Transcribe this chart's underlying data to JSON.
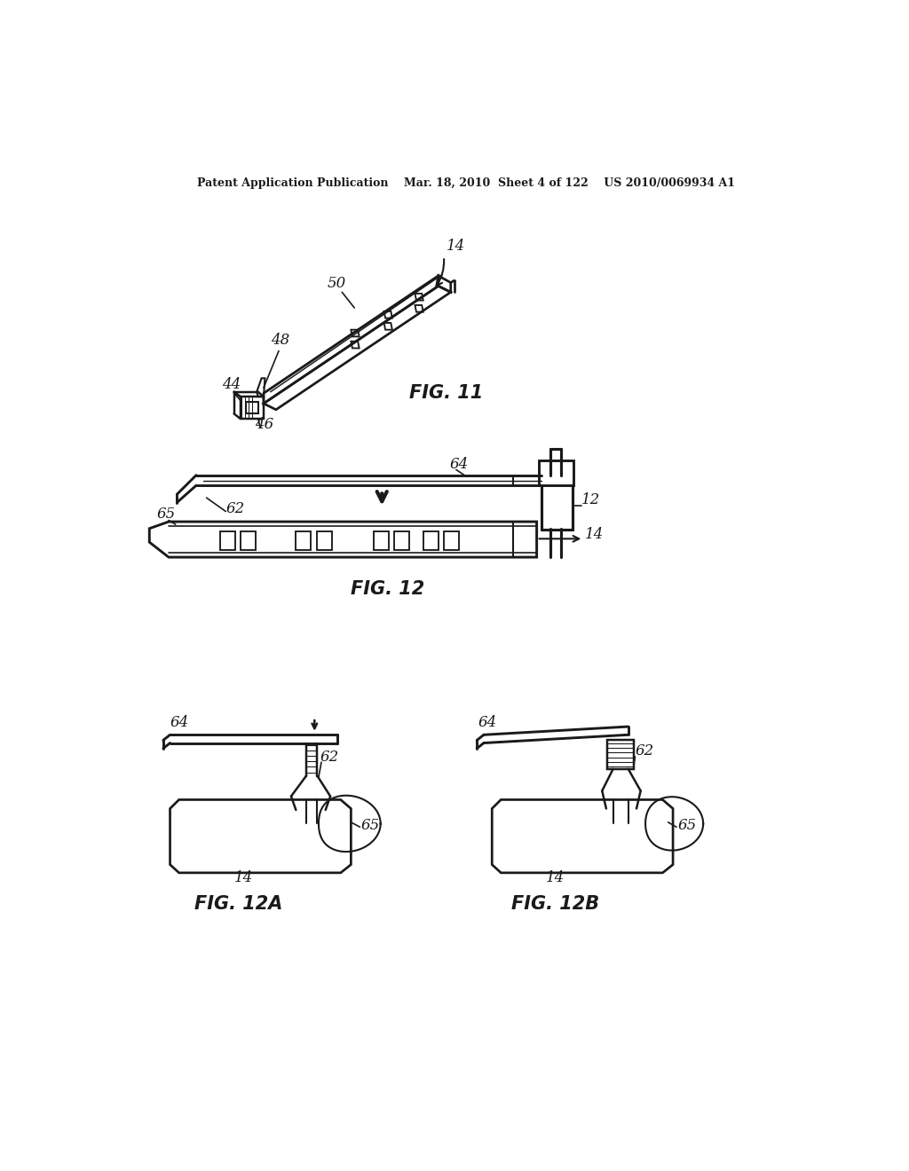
{
  "bg_color": "#ffffff",
  "header_text": "Patent Application Publication    Mar. 18, 2010  Sheet 4 of 122    US 2010/0069934 A1",
  "fig11_label": "FIG. 11",
  "fig12_label": "FIG. 12",
  "fig12a_label": "FIG. 12A",
  "fig12b_label": "FIG. 12B",
  "line_color": "#1a1a1a",
  "line_width": 1.5
}
